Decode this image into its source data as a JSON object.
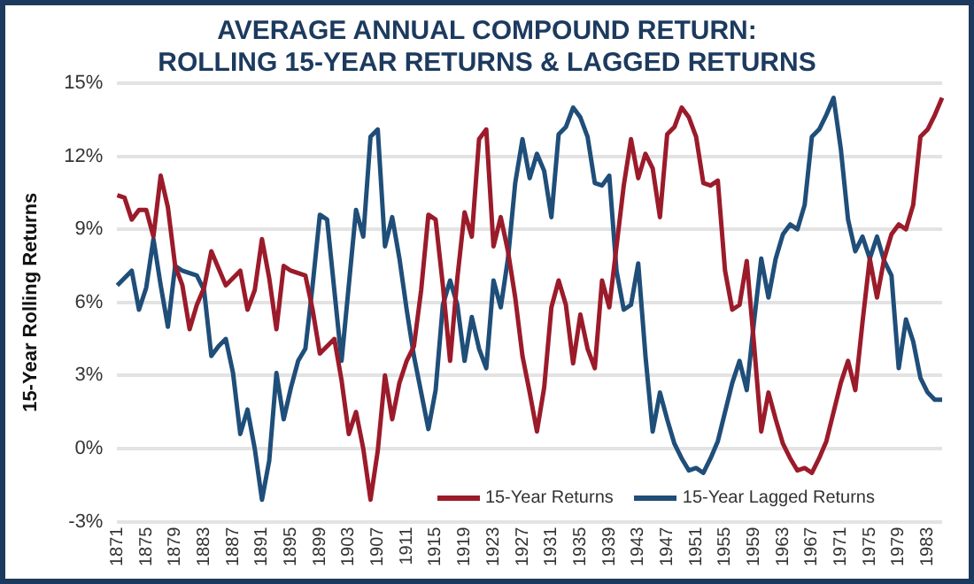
{
  "chart_data": {
    "type": "line",
    "title": "AVERAGE ANNUAL COMPOUND RETURN:\nROLLING 15-YEAR RETURNS & LAGGED RETURNS",
    "ylabel": "15-Year Rolling Returns",
    "categories": [
      "1871",
      null,
      null,
      null,
      "1875",
      null,
      null,
      null,
      "1879",
      null,
      null,
      null,
      "1883",
      null,
      null,
      null,
      "1887",
      null,
      null,
      null,
      "1891",
      null,
      null,
      null,
      "1895",
      null,
      null,
      null,
      "1899",
      null,
      null,
      null,
      "1903",
      null,
      null,
      null,
      "1907",
      null,
      null,
      null,
      "1911",
      null,
      null,
      null,
      "1915",
      null,
      null,
      null,
      "1919",
      null,
      null,
      null,
      "1923",
      null,
      null,
      null,
      "1927",
      null,
      null,
      null,
      "1931",
      null,
      null,
      null,
      "1935",
      null,
      null,
      null,
      "1939",
      null,
      null,
      null,
      "1943",
      null,
      null,
      null,
      "1947",
      null,
      null,
      null,
      "1951",
      null,
      null,
      null,
      "1955",
      null,
      null,
      null,
      "1959",
      null,
      null,
      null,
      "1963",
      null,
      null,
      null,
      "1967",
      null,
      null,
      null,
      "1971",
      null,
      null,
      null,
      "1975",
      null,
      null,
      null,
      "1979",
      null,
      null,
      null,
      "1983",
      null,
      null
    ],
    "series": [
      {
        "name": "15-Year Returns",
        "color": "#9b1b2a",
        "values": [
          10.4,
          10.3,
          9.4,
          9.8,
          9.8,
          8.7,
          11.2,
          9.9,
          7.5,
          6.7,
          4.9,
          5.9,
          6.6,
          8.1,
          7.4,
          6.7,
          7.0,
          7.3,
          5.7,
          6.5,
          8.6,
          7.0,
          4.9,
          7.5,
          7.3,
          7.2,
          7.1,
          5.7,
          3.9,
          4.2,
          4.5,
          2.8,
          0.6,
          1.5,
          0.0,
          -2.1,
          -0.1,
          3.0,
          1.2,
          2.7,
          3.6,
          4.2,
          6.5,
          9.6,
          9.4,
          6.7,
          3.6,
          7.0,
          9.7,
          8.7,
          12.7,
          13.1,
          8.3,
          9.5,
          8.1,
          6.2,
          3.8,
          2.3,
          0.7,
          2.5,
          5.8,
          6.9,
          5.9,
          3.5,
          5.5,
          4.1,
          3.3,
          6.9,
          5.8,
          8.3,
          10.8,
          12.7,
          11.1,
          12.1,
          11.5,
          9.5,
          12.9,
          13.2,
          14.0,
          13.6,
          12.8,
          10.9,
          10.8,
          11.0,
          7.3,
          5.7,
          5.9,
          7.7,
          4.3,
          0.7,
          2.3,
          1.2,
          0.2,
          -0.4,
          -0.9,
          -0.8,
          -1.0,
          -0.4,
          0.3,
          1.5,
          2.7,
          3.6,
          2.4,
          5.2,
          7.8,
          6.2,
          7.8,
          8.8,
          9.2,
          9.0,
          10.0,
          12.8,
          13.1,
          13.7,
          14.4
        ]
      },
      {
        "name": "15-Year Lagged Returns",
        "color": "#1f4e79",
        "values": [
          6.7,
          7.0,
          7.3,
          5.7,
          6.6,
          8.6,
          6.7,
          5.0,
          7.5,
          7.3,
          7.2,
          7.1,
          6.5,
          3.8,
          4.2,
          4.5,
          3.1,
          0.6,
          1.6,
          0.0,
          -2.1,
          -0.5,
          3.1,
          1.2,
          2.5,
          3.6,
          4.1,
          6.7,
          9.6,
          9.4,
          6.5,
          3.6,
          6.7,
          9.8,
          8.7,
          12.8,
          13.1,
          8.3,
          9.5,
          7.8,
          5.7,
          3.8,
          2.3,
          0.8,
          2.4,
          5.9,
          6.9,
          5.9,
          3.6,
          5.4,
          4.1,
          3.3,
          6.9,
          5.8,
          7.8,
          10.9,
          12.7,
          11.1,
          12.1,
          11.4,
          9.5,
          12.9,
          13.2,
          14.0,
          13.6,
          12.8,
          10.9,
          10.8,
          11.2,
          7.3,
          5.7,
          5.9,
          7.6,
          3.8,
          0.7,
          2.3,
          1.2,
          0.2,
          -0.4,
          -0.9,
          -0.8,
          -1.0,
          -0.4,
          0.3,
          1.5,
          2.7,
          3.6,
          2.4,
          5.2,
          7.8,
          6.2,
          7.8,
          8.8,
          9.2,
          9.0,
          10.0,
          12.8,
          13.1,
          13.7,
          14.4,
          12.3,
          9.4,
          8.1,
          8.7,
          7.8,
          8.7,
          7.7,
          7.1,
          3.3,
          5.3,
          4.4,
          2.9,
          2.3,
          2.0,
          2.0
        ]
      }
    ],
    "ylim": [
      -3,
      15
    ],
    "yticks": [
      {
        "value": -3,
        "label": "-3%"
      },
      {
        "value": 0,
        "label": "0%"
      },
      {
        "value": 3,
        "label": "3%"
      },
      {
        "value": 6,
        "label": "6%"
      },
      {
        "value": 9,
        "label": "9%"
      },
      {
        "value": 12,
        "label": "12%"
      },
      {
        "value": 15,
        "label": "15%"
      }
    ],
    "grid": "y",
    "legend": "bottom right"
  }
}
